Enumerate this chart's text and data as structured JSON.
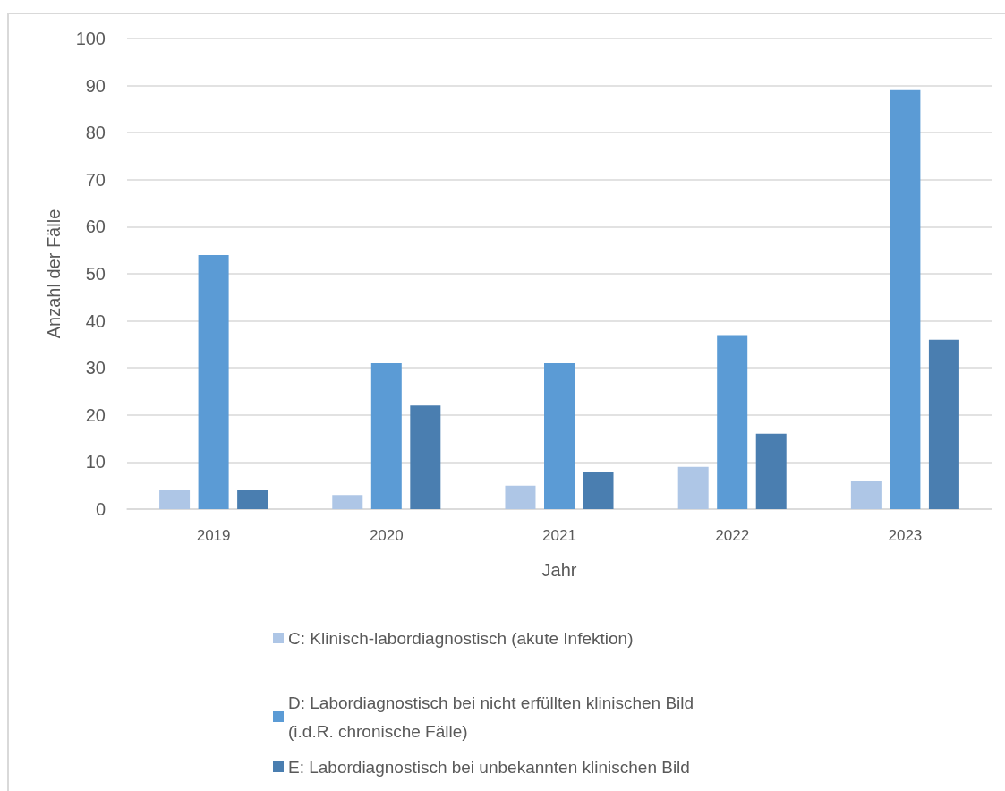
{
  "chart_data": {
    "type": "bar",
    "xlabel": "Jahr",
    "ylabel": "Anzahl der Fälle",
    "categories": [
      "2019",
      "2020",
      "2021",
      "2022",
      "2023"
    ],
    "series": [
      {
        "name": "C: Klinisch-labordiagnostisch (akute Infektion)",
        "color": "#aec6e6",
        "values": [
          4,
          3,
          5,
          9,
          6
        ]
      },
      {
        "name": "D: Labordiagnostisch bei nicht erfüllten klinischen Bild (i.d.R. chronische Fälle)",
        "color": "#5b9bd5",
        "values": [
          54,
          31,
          31,
          37,
          89
        ]
      },
      {
        "name": "E: Labordiagnostisch bei unbekannten klinischen Bild",
        "color": "#4a7eb0",
        "values": [
          4,
          22,
          8,
          16,
          36
        ]
      }
    ],
    "ylim": [
      0,
      100
    ],
    "yticks": [
      0,
      10,
      20,
      30,
      40,
      50,
      60,
      70,
      80,
      90,
      100
    ],
    "grid": "y",
    "legend": "bottom"
  }
}
